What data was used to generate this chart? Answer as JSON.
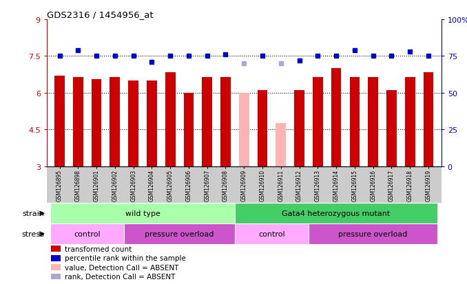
{
  "title": "GDS2316 / 1454956_at",
  "samples": [
    "GSM126895",
    "GSM126898",
    "GSM126901",
    "GSM126902",
    "GSM126903",
    "GSM126904",
    "GSM126905",
    "GSM126906",
    "GSM126907",
    "GSM126908",
    "GSM126909",
    "GSM126910",
    "GSM126911",
    "GSM126912",
    "GSM126913",
    "GSM126914",
    "GSM126915",
    "GSM126916",
    "GSM126917",
    "GSM126918",
    "GSM126919"
  ],
  "bar_values": [
    6.7,
    6.65,
    6.55,
    6.65,
    6.5,
    6.5,
    6.85,
    6.0,
    6.65,
    6.65,
    6.0,
    6.1,
    4.75,
    6.1,
    6.65,
    7.0,
    6.65,
    6.65,
    6.1,
    6.65,
    6.85
  ],
  "absent_mask": [
    false,
    false,
    false,
    false,
    false,
    false,
    false,
    false,
    false,
    false,
    true,
    false,
    true,
    false,
    false,
    false,
    false,
    false,
    false,
    false,
    false
  ],
  "rank_values": [
    75,
    79,
    75,
    75,
    75,
    71,
    75,
    75,
    75,
    76,
    70,
    75,
    70,
    72,
    75,
    75,
    79,
    75,
    75,
    78,
    75
  ],
  "rank_absent_mask": [
    false,
    false,
    false,
    false,
    false,
    false,
    false,
    false,
    false,
    false,
    true,
    false,
    true,
    false,
    false,
    false,
    false,
    false,
    false,
    false,
    false
  ],
  "ylim_left": [
    3,
    9
  ],
  "ylim_right": [
    0,
    100
  ],
  "yticks_left": [
    3,
    4.5,
    6,
    7.5,
    9
  ],
  "yticks_right": [
    0,
    25,
    50,
    75,
    100
  ],
  "ytick_labels_left": [
    "3",
    "4.5",
    "6",
    "7.5",
    "9"
  ],
  "ytick_labels_right": [
    "0",
    "25",
    "50",
    "75",
    "100%"
  ],
  "bar_color_normal": "#cc0000",
  "bar_color_absent": "#ffb3b3",
  "rank_color_normal": "#0000cc",
  "rank_color_absent": "#aaaacc",
  "bar_width": 0.55,
  "strain_groups": [
    {
      "label": "wild type",
      "start": 0,
      "end": 9,
      "color": "#aaffaa"
    },
    {
      "label": "Gata4 heterozygous mutant",
      "start": 10,
      "end": 20,
      "color": "#44cc66"
    }
  ],
  "stress_groups": [
    {
      "label": "control",
      "start": 0,
      "end": 3,
      "color": "#ffaaff"
    },
    {
      "label": "pressure overload",
      "start": 4,
      "end": 9,
      "color": "#cc55cc"
    },
    {
      "label": "control",
      "start": 10,
      "end": 13,
      "color": "#ffaaff"
    },
    {
      "label": "pressure overload",
      "start": 14,
      "end": 20,
      "color": "#cc55cc"
    }
  ],
  "legend_items": [
    {
      "label": "transformed count",
      "color": "#cc0000"
    },
    {
      "label": "percentile rank within the sample",
      "color": "#0000cc"
    },
    {
      "label": "value, Detection Call = ABSENT",
      "color": "#ffb3b3"
    },
    {
      "label": "rank, Detection Call = ABSENT",
      "color": "#aaaacc"
    }
  ],
  "strain_label": "strain",
  "stress_label": "stress",
  "background_color": "#ffffff",
  "axis_color_left": "#cc0000",
  "axis_color_right": "#0000cc",
  "xticklabel_bg": "#cccccc"
}
